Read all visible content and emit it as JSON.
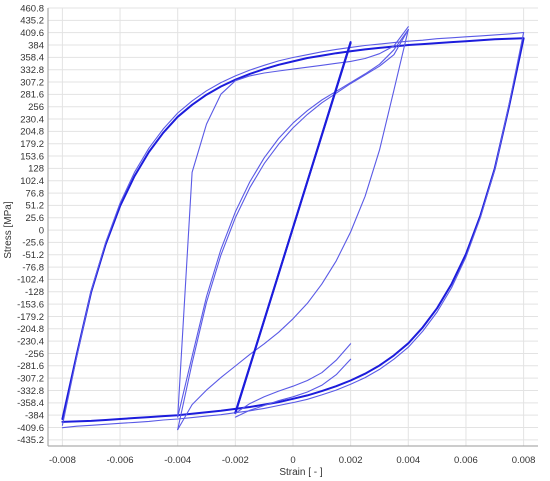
{
  "chart_data": {
    "type": "line",
    "title": "",
    "xlabel": "Strain [ - ]",
    "ylabel": "Stress [MPa]",
    "xlim": [
      -0.0085,
      0.0085
    ],
    "ylim": [
      -448,
      460.8
    ],
    "grid": true,
    "x_ticks": [
      "-0.008",
      "-0.006",
      "-0.004",
      "-0.002",
      "0",
      "0.002",
      "0.004",
      "0.006",
      "0.008"
    ],
    "x_tick_values": [
      -0.008,
      -0.006,
      -0.004,
      -0.002,
      0,
      0.002,
      0.004,
      0.006,
      0.008
    ],
    "y_ticks": [
      "460.8",
      "435.2",
      "409.6",
      "384",
      "358.4",
      "332.8",
      "307.2",
      "281.6",
      "256",
      "230.4",
      "204.8",
      "179.2",
      "153.6",
      "128",
      "102.4",
      "76.8",
      "51.2",
      "25.6",
      "0",
      "-25.6",
      "-51.2",
      "-76.8",
      "-102.4",
      "-128",
      "-153.6",
      "-179.2",
      "-204.8",
      "-230.4",
      "-256",
      "-281.6",
      "-307.2",
      "-332.8",
      "-358.4",
      "-384",
      "-409.6",
      "-435.2"
    ],
    "y_tick_values": [
      460.8,
      435.2,
      409.6,
      384,
      358.4,
      332.8,
      307.2,
      281.6,
      256,
      230.4,
      204.8,
      179.2,
      153.6,
      128,
      102.4,
      76.8,
      51.2,
      25.6,
      0,
      -25.6,
      -51.2,
      -76.8,
      -102.4,
      -128,
      -153.6,
      -179.2,
      -204.8,
      -230.4,
      -256,
      -281.6,
      -307.2,
      -332.8,
      -358.4,
      -384,
      -409.6,
      -435.2
    ],
    "series": [
      {
        "color": "#1c1cdc",
        "width": 2.0,
        "x": [
          -0.008,
          -0.0075,
          -0.007,
          -0.0065,
          -0.006,
          -0.0055,
          -0.005,
          -0.0045,
          -0.004,
          -0.0035,
          -0.003,
          -0.0025,
          -0.002,
          -0.0015,
          -0.001,
          -0.0005,
          0,
          0.0005,
          0.001,
          0.0015,
          0.002,
          0.0025,
          0.003,
          0.0035,
          0.004,
          0.0045,
          0.005,
          0.0055,
          0.006,
          0.0065,
          0.007,
          0.0075,
          0.008
        ],
        "y": [
          -392,
          -258,
          -128,
          -30,
          50,
          112,
          162,
          202,
          235,
          260,
          281,
          298,
          312,
          324,
          334,
          343,
          350,
          357,
          362,
          367,
          371,
          375,
          378,
          381,
          384,
          386,
          388,
          390,
          392,
          394,
          396,
          397,
          398
        ]
      },
      {
        "color": "#1c1cdc",
        "width": 2.0,
        "x": [
          0.008,
          0.0075,
          0.007,
          0.0065,
          0.006,
          0.0055,
          0.005,
          0.0045,
          0.004,
          0.0035,
          0.003,
          0.0025,
          0.002,
          0.0015,
          0.001,
          0.0005,
          0,
          -0.0005,
          -0.001,
          -0.0015,
          -0.002,
          -0.0025,
          -0.003,
          -0.0035,
          -0.004,
          -0.0045,
          -0.005,
          -0.0055,
          -0.006,
          -0.0065,
          -0.007,
          -0.0075,
          -0.008
        ],
        "y": [
          398,
          258,
          128,
          30,
          -50,
          -112,
          -162,
          -202,
          -235,
          -260,
          -281,
          -298,
          -312,
          -324,
          -334,
          -343,
          -350,
          -357,
          -362,
          -367,
          -371,
          -375,
          -378,
          -381,
          -384,
          -386,
          -388,
          -390,
          -392,
          -394,
          -396,
          -397,
          -398
        ]
      },
      {
        "color": "#5a5ae6",
        "width": 1.1,
        "x": [
          -0.008,
          -0.0075,
          -0.007,
          -0.0065,
          -0.006,
          -0.0055,
          -0.005,
          -0.0045,
          -0.004,
          -0.0035,
          -0.003,
          -0.0025,
          -0.002,
          -0.0015,
          -0.001,
          -0.0005,
          0,
          0.0005,
          0.001,
          0.0015,
          0.002,
          0.0025,
          0.003,
          0.0035,
          0.004,
          0.0045,
          0.005,
          0.0055,
          0.006,
          0.0065,
          0.007,
          0.0075,
          0.008
        ],
        "y": [
          -405,
          -262,
          -126,
          -26,
          56,
          120,
          170,
          210,
          243,
          268,
          289,
          306,
          320,
          332,
          342,
          351,
          358,
          364,
          370,
          375,
          379,
          383,
          386,
          389,
          392,
          394,
          397,
          399,
          401,
          403,
          405,
          407,
          410
        ]
      },
      {
        "color": "#5a5ae6",
        "width": 1.1,
        "x": [
          0.008,
          0.0075,
          0.007,
          0.0065,
          0.006,
          0.0055,
          0.005,
          0.0045,
          0.004,
          0.0035,
          0.003,
          0.0025,
          0.002,
          0.0015,
          0.001,
          0.0005,
          0,
          -0.0005,
          -0.001,
          -0.0015,
          -0.002,
          -0.0025,
          -0.003,
          -0.0035,
          -0.004,
          -0.0045,
          -0.005,
          -0.0055,
          -0.006,
          -0.0065,
          -0.007,
          -0.0075,
          -0.008
        ],
        "y": [
          410,
          262,
          126,
          26,
          -56,
          -120,
          -170,
          -210,
          -243,
          -268,
          -289,
          -306,
          -320,
          -332,
          -342,
          -351,
          -358,
          -364,
          -370,
          -375,
          -379,
          -383,
          -386,
          -389,
          -392,
          -394,
          -397,
          -399,
          -401,
          -403,
          -405,
          -407,
          -410
        ]
      },
      {
        "color": "#5a5ae6",
        "width": 1.1,
        "x": [
          -0.004,
          -0.0035,
          -0.003,
          -0.0025,
          -0.002,
          -0.0015,
          -0.001,
          -0.0005,
          0,
          0.0005,
          0.001,
          0.0015,
          0.002,
          0.0025,
          0.003,
          0.0035,
          0.004
        ],
        "y": [
          -388,
          -262,
          -138,
          -40,
          38,
          100,
          150,
          190,
          222,
          248,
          270,
          288,
          306,
          324,
          344,
          374,
          416
        ]
      },
      {
        "color": "#5a5ae6",
        "width": 1.1,
        "x": [
          0.004,
          0.0035,
          0.003,
          0.0025,
          0.002,
          0.0015,
          0.001,
          0.0005,
          0,
          -0.0005,
          -0.001,
          -0.0015,
          -0.002,
          -0.0025,
          -0.003,
          -0.0035,
          -0.004
        ],
        "y": [
          416,
          290,
          166,
          70,
          -4,
          -64,
          -112,
          -152,
          -184,
          -212,
          -236,
          -258,
          -282,
          -306,
          -332,
          -362,
          -414
        ]
      },
      {
        "color": "#5a5ae6",
        "width": 1.1,
        "x": [
          -0.004,
          -0.0035,
          -0.003,
          -0.0025,
          -0.002,
          -0.0015,
          -0.001,
          -0.0005,
          0,
          0.0005,
          0.001,
          0.0015,
          0.002,
          0.0025,
          0.003,
          0.0035,
          0.004
        ],
        "y": [
          -414,
          -276,
          -150,
          -52,
          26,
          88,
          138,
          178,
          212,
          240,
          264,
          284,
          304,
          322,
          340,
          364,
          416
        ]
      },
      {
        "color": "#5a5ae6",
        "width": 1.1,
        "x": [
          0.004,
          0.0035,
          0.003,
          0.0025,
          0.002,
          0.0015,
          0.001,
          0.0005,
          0,
          -0.0005,
          -0.001,
          -0.0015,
          -0.002,
          -0.0025,
          -0.003,
          -0.0035,
          -0.004
        ],
        "y": [
          422,
          382,
          366,
          356,
          350,
          346,
          342,
          338,
          334,
          330,
          326,
          320,
          310,
          282,
          220,
          120,
          -388
        ]
      },
      {
        "color": "#1c1cdc",
        "width": 2.0,
        "x": [
          -0.002,
          0.002
        ],
        "y": [
          -378,
          388
        ]
      },
      {
        "color": "#1c1cdc",
        "width": 2.0,
        "x": [
          0.002,
          -0.002
        ],
        "y": [
          390,
          -380
        ]
      },
      {
        "color": "#5a5ae6",
        "width": 1.1,
        "x": [
          -0.002,
          -0.0015,
          -0.001,
          -0.0005,
          0,
          0.0005,
          0.001,
          0.0015,
          0.002
        ],
        "y": [
          -388,
          -374,
          -364,
          -354,
          -346,
          -336,
          -322,
          -300,
          -268
        ]
      },
      {
        "color": "#5a5ae6",
        "width": 1.1,
        "x": [
          -0.002,
          -0.0015,
          -0.001,
          -0.0005,
          0,
          0.0005,
          0.001,
          0.0015,
          0.002
        ],
        "y": [
          -380,
          -360,
          -346,
          -334,
          -324,
          -312,
          -296,
          -270,
          -236
        ]
      }
    ]
  }
}
